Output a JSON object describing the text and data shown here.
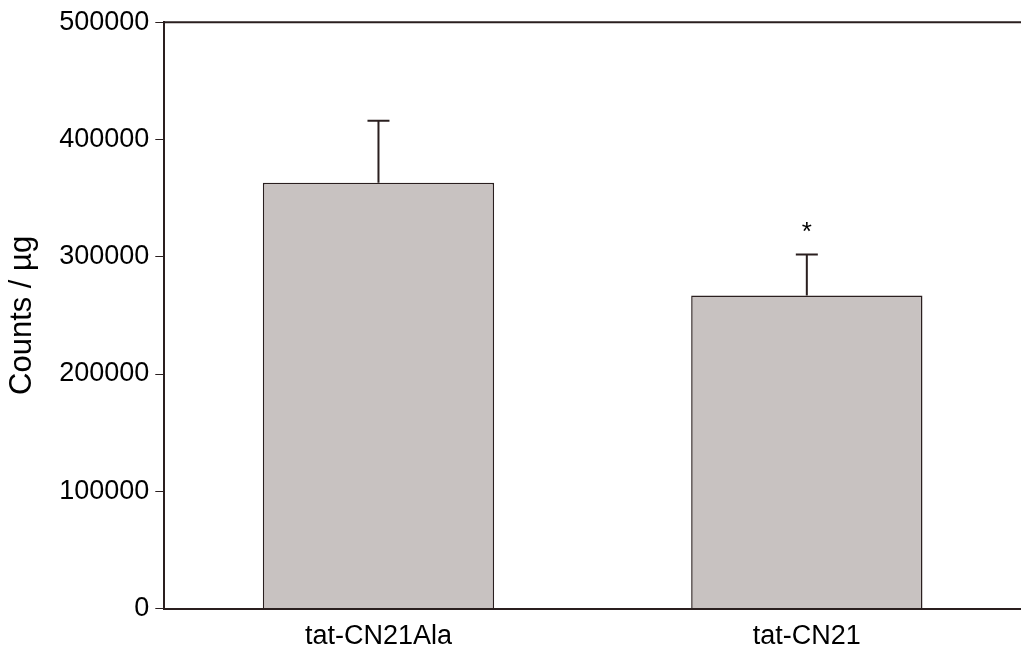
{
  "chart_data": {
    "type": "bar",
    "ylabel": "Counts / µg",
    "categories": [
      "tat-CN21Ala",
      "tat-CN21"
    ],
    "values": [
      363000,
      267000
    ],
    "errors": [
      [
        363000,
        416000
      ],
      [
        267000,
        302000
      ]
    ],
    "color": "#c8c2c1",
    "ylim": [
      0,
      500000
    ],
    "yticks": [
      0,
      100000,
      200000,
      300000,
      400000,
      500000
    ],
    "grid": false,
    "legend": false,
    "annotations": [
      "*"
    ]
  }
}
